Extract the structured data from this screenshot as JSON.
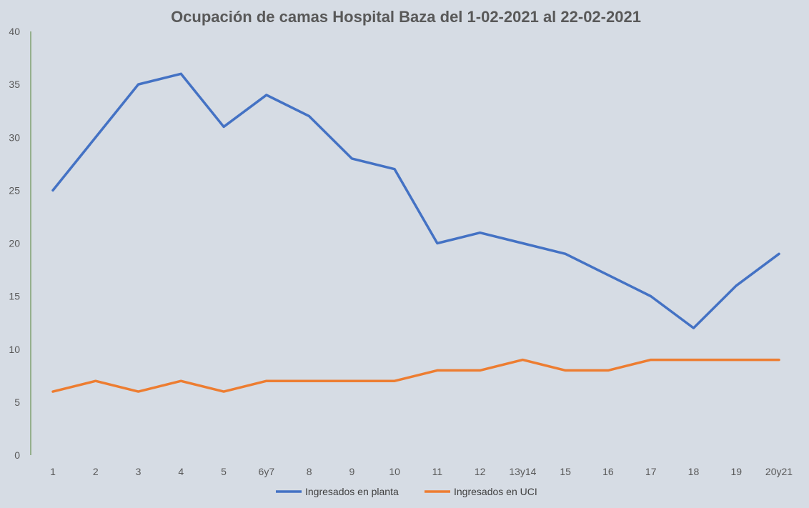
{
  "chart_data": {
    "type": "line",
    "title": "Ocupación de camas Hospital Baza del 1-02-2021 al 22-02-2021",
    "xlabel": "",
    "ylabel": "",
    "ylim": [
      0,
      40
    ],
    "yticks": [
      "0",
      "5",
      "10",
      "15",
      "20",
      "25",
      "30",
      "35",
      "40"
    ],
    "categories": [
      "1",
      "2",
      "3",
      "4",
      "5",
      "6y7",
      "8",
      "9",
      "10",
      "11",
      "12",
      "13y14",
      "15",
      "16",
      "17",
      "18",
      "19",
      "20y21"
    ],
    "series": [
      {
        "name": "Ingresados en planta",
        "color": "#4472c4",
        "values": [
          25,
          30,
          35,
          36,
          31,
          34,
          32,
          28,
          27,
          20,
          21,
          20,
          19,
          17,
          15,
          12,
          16,
          19
        ]
      },
      {
        "name": "Ingresados en UCI",
        "color": "#ed7d31",
        "values": [
          6,
          7,
          6,
          7,
          6,
          7,
          7,
          7,
          7,
          8,
          8,
          9,
          8,
          8,
          9,
          9,
          9,
          9
        ]
      }
    ],
    "grid": false,
    "legend": "bottom",
    "axis_color": "#548235"
  }
}
